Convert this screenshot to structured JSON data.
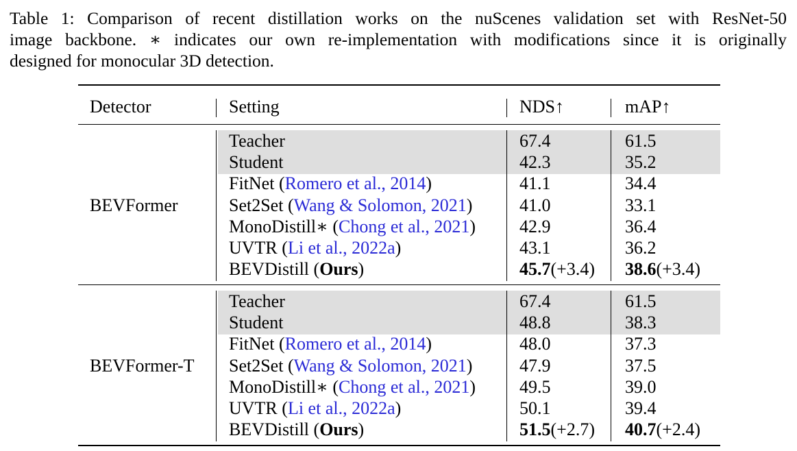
{
  "caption": {
    "lines": [
      "Table 1: Comparison of recent distillation works on the nuScenes validation set with ResNet-50",
      "image backbone. ∗ indicates our own re-implementation with modifications since it is originally",
      "designed for monocular 3D detection."
    ]
  },
  "table": {
    "headers": [
      "Detector",
      "Setting",
      "NDS↑",
      "mAP↑"
    ],
    "groups": [
      {
        "detector": "BEVFormer",
        "rows": [
          {
            "setting": "Teacher",
            "cite": "",
            "nds": "67.4",
            "map": "61.5"
          },
          {
            "setting": "Student",
            "cite": "",
            "nds": "42.3",
            "map": "35.2"
          },
          {
            "setting": "FitNet",
            "cite": "Romero et al., 2014",
            "nds": "41.1",
            "map": "34.4"
          },
          {
            "setting": "Set2Set",
            "cite": "Wang & Solomon, 2021",
            "nds": "41.0",
            "map": "33.1"
          },
          {
            "setting": "MonoDistill∗",
            "cite": "Chong et al., 2021",
            "nds": "42.9",
            "map": "36.4"
          },
          {
            "setting": "UVTR",
            "cite": "Li et al., 2022a",
            "nds": "43.1",
            "map": "36.2"
          }
        ],
        "ours": {
          "setting": "BEVDistill",
          "ours_label": "Ours",
          "nds": "45.7",
          "nds_gain": "(+3.4)",
          "map": "38.6",
          "map_gain": "(+3.4)"
        }
      },
      {
        "detector": "BEVFormer-T",
        "rows": [
          {
            "setting": "Teacher",
            "cite": "",
            "nds": "67.4",
            "map": "61.5"
          },
          {
            "setting": "Student",
            "cite": "",
            "nds": "48.8",
            "map": "38.3"
          },
          {
            "setting": "FitNet",
            "cite": "Romero et al., 2014",
            "nds": "48.0",
            "map": "37.3"
          },
          {
            "setting": "Set2Set",
            "cite": "Wang & Solomon, 2021",
            "nds": "47.9",
            "map": "37.5"
          },
          {
            "setting": "MonoDistill∗",
            "cite": "Chong et al., 2021",
            "nds": "49.5",
            "map": "39.0"
          },
          {
            "setting": "UVTR",
            "cite": "Li et al., 2022a",
            "nds": "50.1",
            "map": "39.4"
          }
        ],
        "ours": {
          "setting": "BEVDistill",
          "ours_label": "Ours",
          "nds": "51.5",
          "nds_gain": "(+2.7)",
          "map": "40.7",
          "map_gain": "(+2.4)"
        }
      }
    ]
  }
}
